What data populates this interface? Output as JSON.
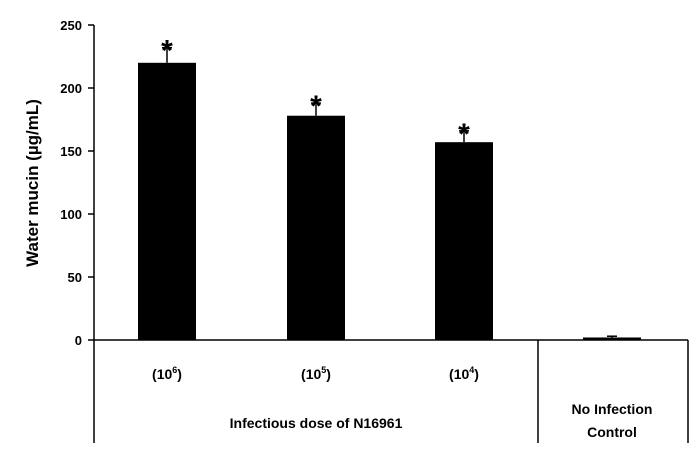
{
  "chart_data": {
    "type": "bar",
    "title": "",
    "ylabel": "Water mucin (µg/mL)",
    "xlabel": "",
    "ylim": [
      0,
      250
    ],
    "yticks": [
      0,
      50,
      100,
      150,
      200,
      250
    ],
    "categories": [
      {
        "base": "(10",
        "exp": "6",
        "close": ")"
      },
      {
        "base": "(10",
        "exp": "5",
        "close": ")"
      },
      {
        "base": "(10",
        "exp": "4",
        "close": ")"
      },
      {
        "base": "",
        "exp": "",
        "close": ""
      }
    ],
    "values": [
      220,
      178,
      157,
      2
    ],
    "errors": [
      12,
      10,
      9,
      1
    ],
    "significance": [
      "*",
      "*",
      "*",
      ""
    ],
    "groups": [
      {
        "label": "Infectious dose of N16961",
        "lines": [
          "Infectious dose of N16961"
        ]
      },
      {
        "label": "No Infection Control",
        "lines": [
          "No Infection",
          "Control"
        ]
      }
    ],
    "bar_color": "#000000",
    "grid": false,
    "legend": "none"
  }
}
